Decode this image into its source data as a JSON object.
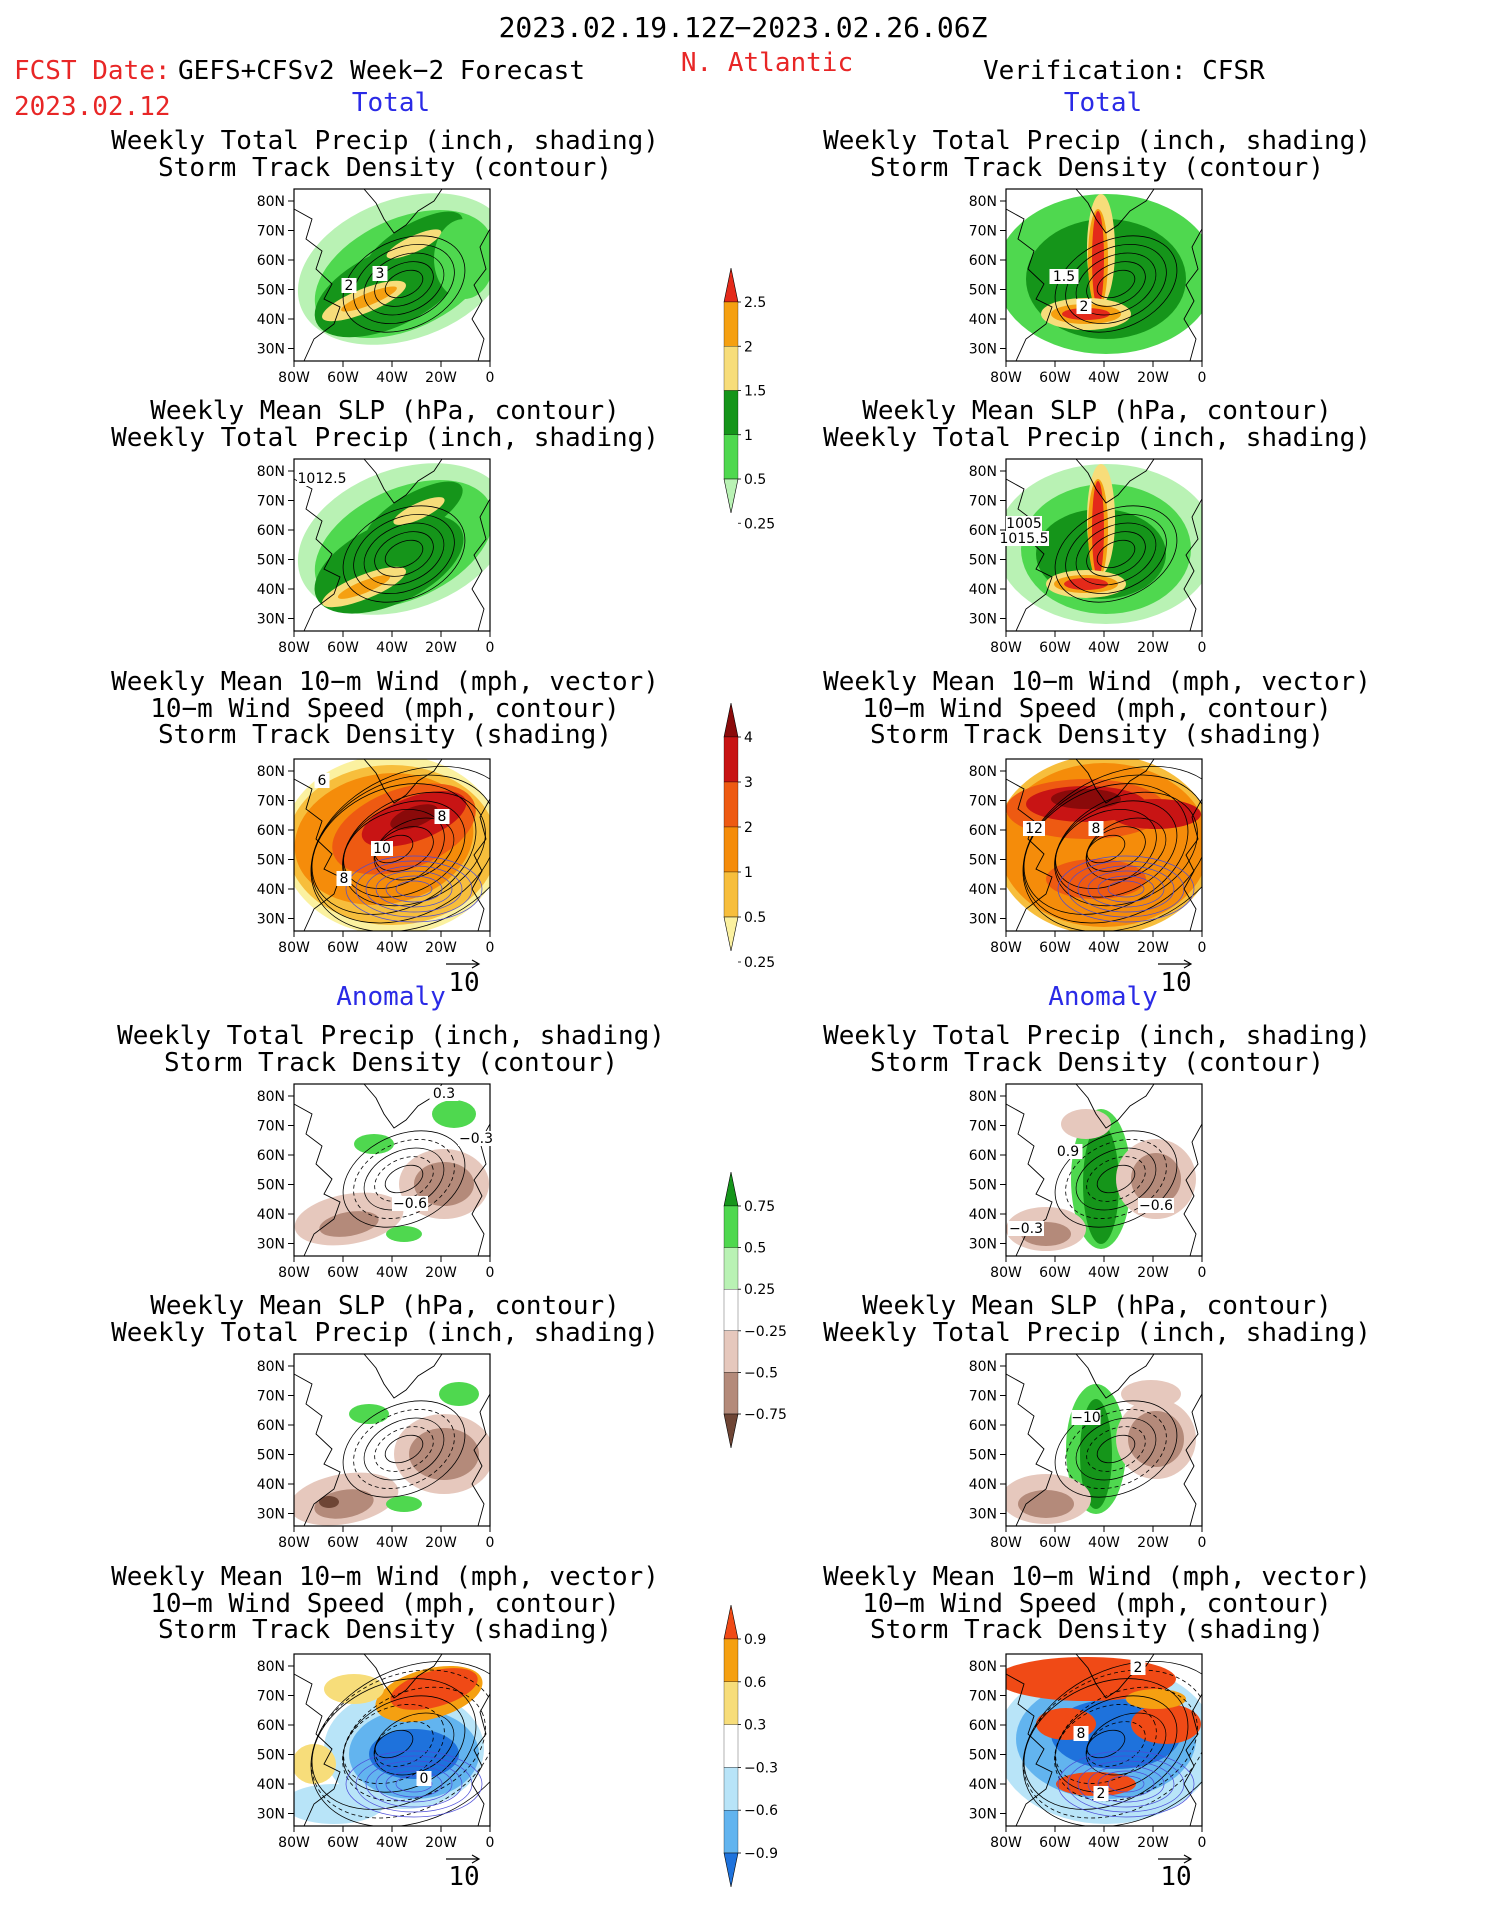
{
  "header": {
    "period": "2023.02.19.12Z−2023.02.26.06Z",
    "fcst_label": "FCST Date:",
    "fcst_model": "GEFS+CFSv2 Week−2 Forecast",
    "fcst_date": "2023.02.12",
    "region": "N. Atlantic",
    "verification": "Verification: CFSR"
  },
  "section_labels": {
    "total": "Total",
    "anomaly": "Anomaly"
  },
  "titles": {
    "precip_storm": [
      "Weekly Total Precip (inch, shading)",
      "Storm Track Density (contour)"
    ],
    "slp_precip": [
      "Weekly Mean SLP (hPa, contour)",
      "Weekly Total Precip (inch, shading)"
    ],
    "wind_storm": [
      "Weekly Mean 10−m Wind (mph, vector)",
      "10−m Wind Speed (mph, contour)",
      "Storm Track Density (shading)"
    ]
  },
  "axes": {
    "lat_ticks": [
      "80N",
      "70N",
      "60N",
      "50N",
      "40N",
      "30N"
    ],
    "lon_ticks": [
      "80W",
      "60W",
      "40W",
      "20W",
      "0"
    ]
  },
  "vector_scale": "10",
  "colorbars": {
    "precip_total": {
      "labels": [
        "2.5",
        "2",
        "1.5",
        "1",
        "0.5",
        "0.25"
      ],
      "colors": [
        "#e42a1a",
        "#f5a011",
        "#f7dd7a",
        "#15951a",
        "#4fd84f",
        "#b9f2b4"
      ]
    },
    "storm_total": {
      "labels": [
        "4",
        "3",
        "2",
        "1",
        "0.5",
        "0.25"
      ],
      "colors": [
        "#8a0a0a",
        "#c81414",
        "#ee5a12",
        "#f58c0a",
        "#f7be3c",
        "#fbf1a0"
      ]
    },
    "precip_anom": {
      "labels": [
        "0.75",
        "0.5",
        "0.25",
        "−0.25",
        "−0.5",
        "−0.75"
      ],
      "colors": [
        "#15951a",
        "#4fd84f",
        "#b9f2b4",
        "#ffffff",
        "#e6c8bd",
        "#b48a7a",
        "#6e4535"
      ]
    },
    "storm_anom": {
      "labels": [
        "0.9",
        "0.6",
        "0.3",
        "−0.3",
        "−0.6",
        "−0.9"
      ],
      "colors": [
        "#f04a16",
        "#f5a011",
        "#f7dd7a",
        "#ffffff",
        "#b8e4f8",
        "#62b4ef",
        "#1e72dc"
      ]
    }
  },
  "chart_data": [
    {
      "type": "heatmap",
      "panel": "forecast-total-precip-storm",
      "column": "GEFS+CFSv2",
      "section": "Total",
      "contour_labels": [
        "3",
        "2"
      ],
      "xlim": [
        "80W",
        "0"
      ],
      "ylim": [
        "25N",
        "85N"
      ]
    },
    {
      "type": "heatmap",
      "panel": "forecast-total-slp-precip",
      "column": "GEFS+CFSv2",
      "section": "Total",
      "contour_labels": [
        "1012.5"
      ],
      "xlim": [
        "80W",
        "0"
      ],
      "ylim": [
        "25N",
        "85N"
      ]
    },
    {
      "type": "heatmap",
      "panel": "forecast-total-wind-storm",
      "column": "GEFS+CFSv2",
      "section": "Total",
      "contour_labels": [
        "6",
        "8",
        "10",
        "8"
      ],
      "xlim": [
        "80W",
        "0"
      ],
      "ylim": [
        "25N",
        "85N"
      ]
    },
    {
      "type": "heatmap",
      "panel": "verify-total-precip-storm",
      "column": "CFSR",
      "section": "Total",
      "contour_labels": [
        "1.5",
        "2"
      ],
      "xlim": [
        "80W",
        "0"
      ],
      "ylim": [
        "25N",
        "85N"
      ]
    },
    {
      "type": "heatmap",
      "panel": "verify-total-slp-precip",
      "column": "CFSR",
      "section": "Total",
      "contour_labels": [
        "1005",
        "1015.5"
      ],
      "xlim": [
        "80W",
        "0"
      ],
      "ylim": [
        "25N",
        "85N"
      ]
    },
    {
      "type": "heatmap",
      "panel": "verify-total-wind-storm",
      "column": "CFSR",
      "section": "Total",
      "contour_labels": [
        "12",
        "8"
      ],
      "xlim": [
        "80W",
        "0"
      ],
      "ylim": [
        "25N",
        "85N"
      ]
    },
    {
      "type": "heatmap",
      "panel": "forecast-anom-precip-storm",
      "column": "GEFS+CFSv2",
      "section": "Anomaly",
      "contour_labels": [
        "0.3",
        "−0.3",
        "−0.6"
      ],
      "xlim": [
        "80W",
        "0"
      ],
      "ylim": [
        "25N",
        "85N"
      ]
    },
    {
      "type": "heatmap",
      "panel": "forecast-anom-slp-precip",
      "column": "GEFS+CFSv2",
      "section": "Anomaly",
      "contour_labels": [],
      "xlim": [
        "80W",
        "0"
      ],
      "ylim": [
        "25N",
        "85N"
      ]
    },
    {
      "type": "heatmap",
      "panel": "forecast-anom-wind-storm",
      "column": "GEFS+CFSv2",
      "section": "Anomaly",
      "contour_labels": [
        "0"
      ],
      "xlim": [
        "80W",
        "0"
      ],
      "ylim": [
        "25N",
        "85N"
      ]
    },
    {
      "type": "heatmap",
      "panel": "verify-anom-precip-storm",
      "column": "CFSR",
      "section": "Anomaly",
      "contour_labels": [
        "0.9",
        "−0.6",
        "−0.3"
      ],
      "xlim": [
        "80W",
        "0"
      ],
      "ylim": [
        "25N",
        "85N"
      ]
    },
    {
      "type": "heatmap",
      "panel": "verify-anom-slp-precip",
      "column": "CFSR",
      "section": "Anomaly",
      "contour_labels": [
        "−10"
      ],
      "xlim": [
        "80W",
        "0"
      ],
      "ylim": [
        "25N",
        "85N"
      ]
    },
    {
      "type": "heatmap",
      "panel": "verify-anom-wind-storm",
      "column": "CFSR",
      "section": "Anomaly",
      "contour_labels": [
        "2",
        "8",
        "2"
      ],
      "xlim": [
        "80W",
        "0"
      ],
      "ylim": [
        "25N",
        "85N"
      ]
    }
  ]
}
